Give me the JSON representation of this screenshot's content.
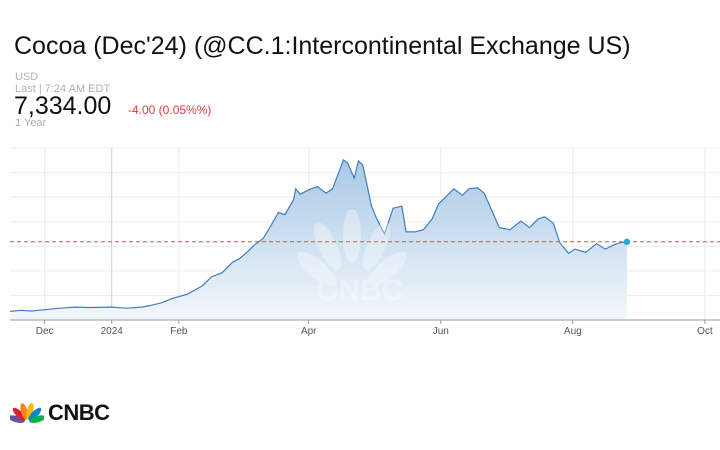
{
  "header": {
    "title": "Cocoa (Dec'24) (@CC.1:Intercontinental Exchange US)",
    "currency": "USD",
    "last_update": "Last | 7:24 AM EDT",
    "price": "7,334.00",
    "change": "-4.00 (0.05%%)",
    "period": "1 Year"
  },
  "watermark": "CNBC",
  "brand": {
    "name": "CNBC",
    "icon": "nbc-peacock-icon"
  },
  "colors": {
    "line": "#3f7fc1",
    "fill_top": "#a9c8e6",
    "fill_bottom": "#f3f7fb",
    "reference": "#d9534f",
    "current_point": "#29a9e0",
    "change": "#e03a3a"
  },
  "chart_data": {
    "type": "area",
    "title": "",
    "xlabel": "",
    "ylabel": "",
    "x_range": [
      "2023-11-15",
      "2024-10-08"
    ],
    "x_ticks": [
      {
        "label": "Dec",
        "date": "2023-12-01"
      },
      {
        "label": "2024",
        "date": "2024-01-01"
      },
      {
        "label": "Feb",
        "date": "2024-02-01"
      },
      {
        "label": "Apr",
        "date": "2024-04-01"
      },
      {
        "label": "Jun",
        "date": "2024-06-01"
      },
      {
        "label": "Aug",
        "date": "2024-08-01"
      },
      {
        "label": "Oct",
        "date": "2024-10-01"
      }
    ],
    "ylim": [
      3700,
      11700
    ],
    "reference_line": 7338,
    "grid": true,
    "y_axis_labels": false,
    "series": [
      {
        "points": [
          [
            "2023-11-15",
            4100
          ],
          [
            "2023-11-20",
            4150
          ],
          [
            "2023-11-25",
            4120
          ],
          [
            "2023-12-01",
            4180
          ],
          [
            "2023-12-08",
            4250
          ],
          [
            "2023-12-15",
            4300
          ],
          [
            "2023-12-22",
            4280
          ],
          [
            "2024-01-01",
            4300
          ],
          [
            "2024-01-08",
            4250
          ],
          [
            "2024-01-15",
            4300
          ],
          [
            "2024-01-19",
            4380
          ],
          [
            "2024-01-24",
            4500
          ],
          [
            "2024-01-29",
            4700
          ],
          [
            "2024-02-05",
            4900
          ],
          [
            "2024-02-12",
            5300
          ],
          [
            "2024-02-16",
            5700
          ],
          [
            "2024-02-21",
            5900
          ],
          [
            "2024-02-26",
            6400
          ],
          [
            "2024-02-29",
            6550
          ],
          [
            "2024-03-04",
            6900
          ],
          [
            "2024-03-07",
            7200
          ],
          [
            "2024-03-11",
            7500
          ],
          [
            "2024-03-14",
            8000
          ],
          [
            "2024-03-18",
            8700
          ],
          [
            "2024-03-21",
            8600
          ],
          [
            "2024-03-25",
            9300
          ],
          [
            "2024-03-26",
            9800
          ],
          [
            "2024-03-28",
            9550
          ],
          [
            "2024-04-02",
            9800
          ],
          [
            "2024-04-05",
            9900
          ],
          [
            "2024-04-09",
            9600
          ],
          [
            "2024-04-12",
            9800
          ],
          [
            "2024-04-15",
            10600
          ],
          [
            "2024-04-17",
            11150
          ],
          [
            "2024-04-19",
            11000
          ],
          [
            "2024-04-22",
            10300
          ],
          [
            "2024-04-24",
            11100
          ],
          [
            "2024-04-26",
            10900
          ],
          [
            "2024-04-30",
            9000
          ],
          [
            "2024-05-02",
            8500
          ],
          [
            "2024-05-06",
            7700
          ],
          [
            "2024-05-08",
            8300
          ],
          [
            "2024-05-10",
            8900
          ],
          [
            "2024-05-14",
            9000
          ],
          [
            "2024-05-16",
            7800
          ],
          [
            "2024-05-20",
            7800
          ],
          [
            "2024-05-24",
            7900
          ],
          [
            "2024-05-28",
            8400
          ],
          [
            "2024-05-31",
            9100
          ],
          [
            "2024-06-04",
            9500
          ],
          [
            "2024-06-07",
            9800
          ],
          [
            "2024-06-11",
            9500
          ],
          [
            "2024-06-14",
            9800
          ],
          [
            "2024-06-18",
            9850
          ],
          [
            "2024-06-21",
            9600
          ],
          [
            "2024-06-25",
            8700
          ],
          [
            "2024-06-28",
            8000
          ],
          [
            "2024-07-03",
            7900
          ],
          [
            "2024-07-08",
            8300
          ],
          [
            "2024-07-12",
            8000
          ],
          [
            "2024-07-16",
            8400
          ],
          [
            "2024-07-19",
            8500
          ],
          [
            "2024-07-23",
            8200
          ],
          [
            "2024-07-26",
            7300
          ],
          [
            "2024-07-30",
            6800
          ],
          [
            "2024-08-02",
            7000
          ],
          [
            "2024-08-07",
            6850
          ],
          [
            "2024-08-12",
            7250
          ],
          [
            "2024-08-16",
            7000
          ],
          [
            "2024-08-20",
            7200
          ],
          [
            "2024-08-23",
            7300
          ],
          [
            "2024-08-26",
            7334
          ]
        ]
      }
    ]
  }
}
